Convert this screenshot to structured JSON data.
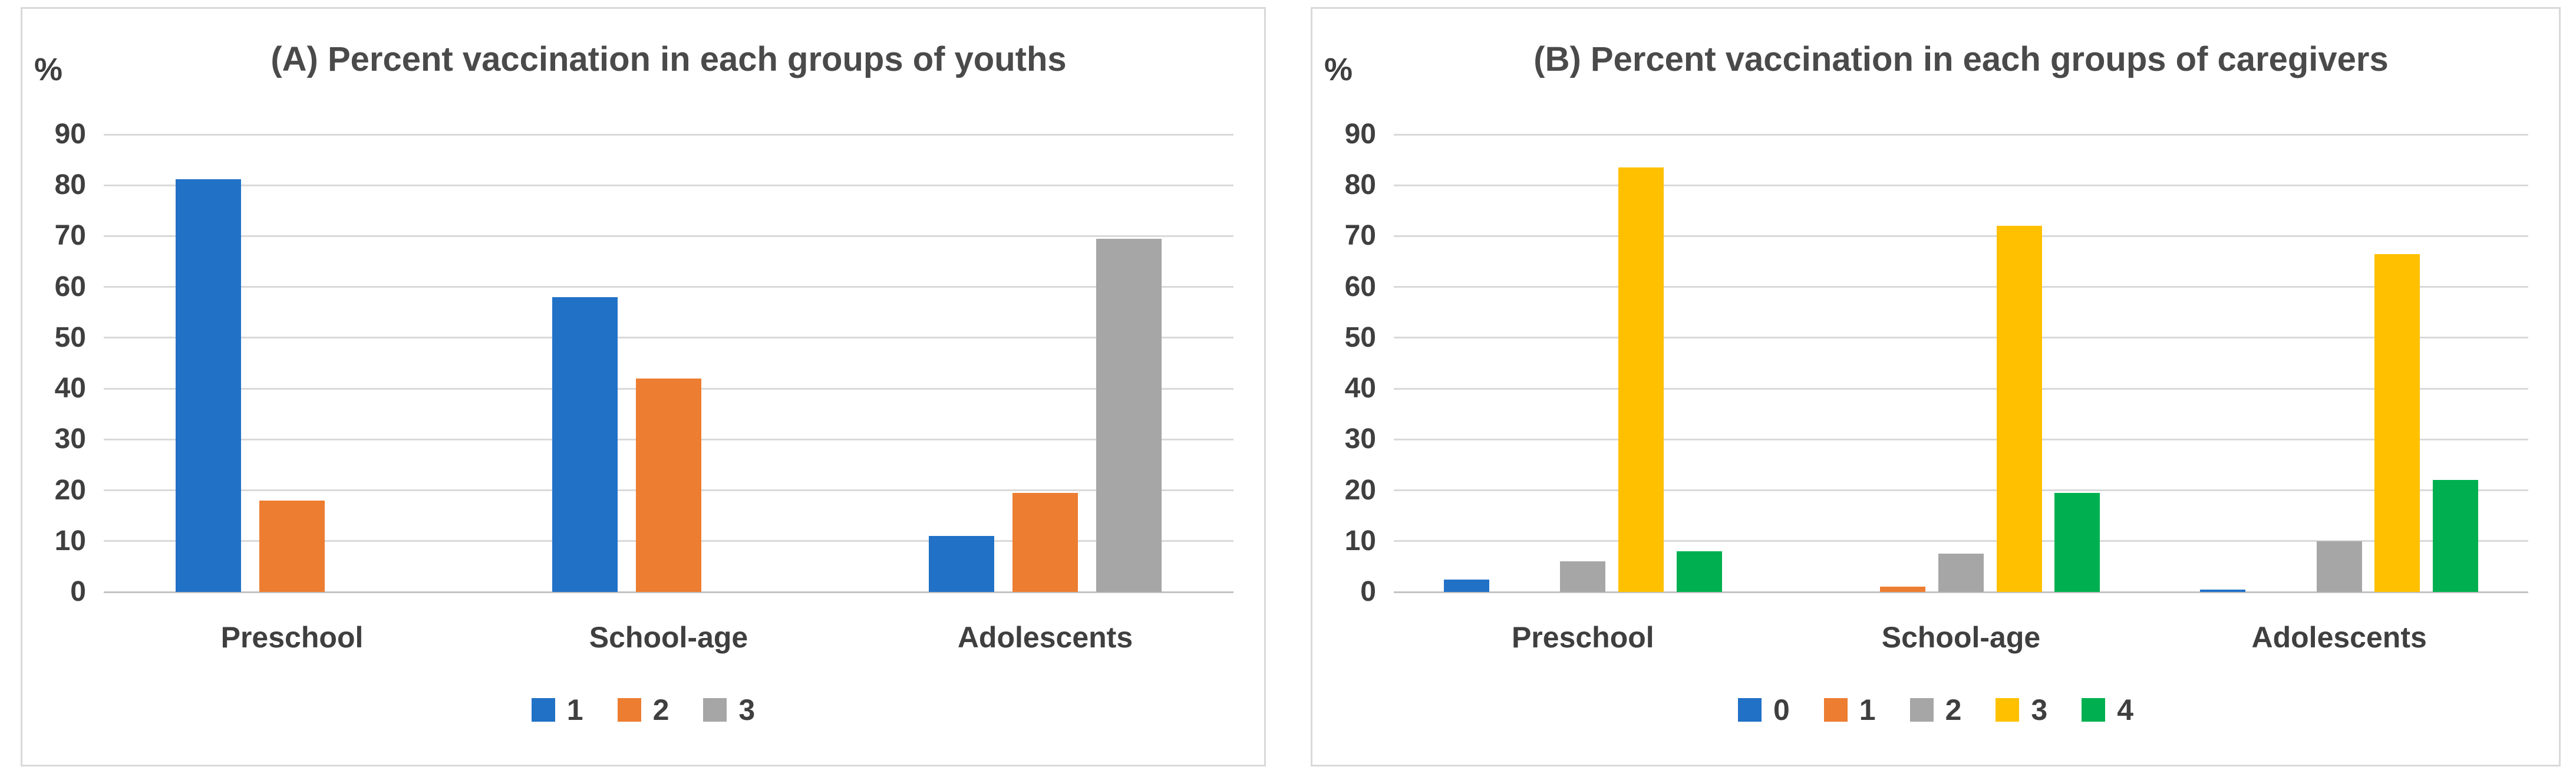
{
  "page": {
    "background": "#ffffff",
    "panel_border_color": "#d9d9d9"
  },
  "styles": {
    "gridline_color": "#d9d9d9",
    "axis_line_color": "#c3c3c3",
    "text_color": "#3f3f3f",
    "title_color": "#4a4a4a"
  },
  "chart_data": [
    {
      "type": "bar",
      "title": "(A) Percent vaccination in each groups of youths",
      "ylabel": "%",
      "categories": [
        "Preschool",
        "School-age",
        "Adolescents"
      ],
      "series": [
        {
          "name": "1",
          "color": "#2171c7",
          "values": [
            81.2,
            58,
            11
          ]
        },
        {
          "name": "2",
          "color": "#ed7d31",
          "values": [
            18,
            42,
            19.5
          ]
        },
        {
          "name": "3",
          "color": "#a6a6a6",
          "values": [
            0,
            0,
            69.5
          ]
        }
      ],
      "ylim": [
        0,
        90
      ],
      "ytick_step": 10,
      "yticks": [
        "0",
        "10",
        "20",
        "30",
        "40",
        "50",
        "60",
        "70",
        "80",
        "90"
      ],
      "grid": true,
      "legend_position": "bottom"
    },
    {
      "type": "bar",
      "title": "(B) Percent vaccination in each groups of caregivers",
      "ylabel": "%",
      "categories": [
        "Preschool",
        "School-age",
        "Adolescents"
      ],
      "series": [
        {
          "name": "0",
          "color": "#2171c7",
          "values": [
            2.4,
            0,
            0.5
          ]
        },
        {
          "name": "1",
          "color": "#ed7d31",
          "values": [
            0,
            1,
            0
          ]
        },
        {
          "name": "2",
          "color": "#a6a6a6",
          "values": [
            6,
            7.5,
            10
          ]
        },
        {
          "name": "3",
          "color": "#ffc000",
          "values": [
            83.5,
            72,
            66.5
          ]
        },
        {
          "name": "4",
          "color": "#00b050",
          "values": [
            8,
            19.5,
            22
          ]
        }
      ],
      "ylim": [
        0,
        90
      ],
      "ytick_step": 10,
      "yticks": [
        "0",
        "10",
        "20",
        "30",
        "40",
        "50",
        "60",
        "70",
        "80",
        "90"
      ],
      "grid": true,
      "legend_position": "bottom"
    }
  ]
}
